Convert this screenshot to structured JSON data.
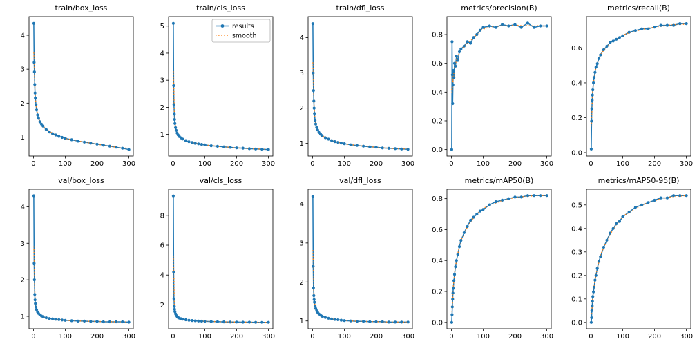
{
  "figure": {
    "background": "#ffffff",
    "accent_blue": "#1f77b4",
    "accent_orange": "#ff7f0e"
  },
  "legend": {
    "entries": [
      {
        "label": "results",
        "color": "#1f77b4",
        "style": "line-marker"
      },
      {
        "label": "smooth",
        "color": "#ff7f0e",
        "style": "dotted"
      }
    ]
  },
  "chart_data": [
    {
      "type": "line",
      "title": "train/box_loss",
      "series_name": "results",
      "x": [
        1,
        2,
        3,
        4,
        5,
        6,
        8,
        10,
        13,
        16,
        20,
        25,
        30,
        40,
        50,
        60,
        70,
        80,
        90,
        100,
        120,
        140,
        160,
        180,
        200,
        220,
        240,
        260,
        280,
        300
      ],
      "values": [
        4.35,
        3.2,
        2.92,
        2.55,
        2.3,
        2.15,
        1.95,
        1.8,
        1.65,
        1.55,
        1.45,
        1.38,
        1.32,
        1.22,
        1.15,
        1.1,
        1.06,
        1.02,
        0.99,
        0.96,
        0.92,
        0.88,
        0.85,
        0.82,
        0.79,
        0.76,
        0.73,
        0.7,
        0.67,
        0.63
      ],
      "xlim": [
        -14,
        314
      ],
      "ylim": [
        0.44,
        4.55
      ],
      "xticks": [
        0,
        100,
        200,
        300
      ],
      "xtick_labels": [
        "0",
        "100",
        "200",
        "300"
      ],
      "yticks": [
        1,
        2,
        3,
        4
      ],
      "ytick_labels": [
        "1",
        "2",
        "3",
        "4"
      ],
      "has_legend": false
    },
    {
      "type": "line",
      "title": "train/cls_loss",
      "series_name": "results",
      "x": [
        1,
        2,
        3,
        4,
        5,
        6,
        8,
        10,
        13,
        16,
        20,
        25,
        30,
        40,
        50,
        60,
        70,
        80,
        90,
        100,
        120,
        140,
        160,
        180,
        200,
        220,
        240,
        260,
        280,
        300
      ],
      "values": [
        5.1,
        2.8,
        2.1,
        1.75,
        1.55,
        1.4,
        1.25,
        1.15,
        1.05,
        0.98,
        0.92,
        0.87,
        0.83,
        0.77,
        0.73,
        0.7,
        0.67,
        0.65,
        0.63,
        0.61,
        0.58,
        0.56,
        0.54,
        0.52,
        0.5,
        0.49,
        0.47,
        0.46,
        0.45,
        0.44
      ],
      "xlim": [
        -14,
        314
      ],
      "ylim": [
        0.2,
        5.35
      ],
      "xticks": [
        0,
        100,
        200,
        300
      ],
      "xtick_labels": [
        "0",
        "100",
        "200",
        "300"
      ],
      "yticks": [
        1,
        2,
        3,
        4,
        5
      ],
      "ytick_labels": [
        "1",
        "2",
        "3",
        "4",
        "5"
      ],
      "has_legend": true
    },
    {
      "type": "line",
      "title": "train/dfl_loss",
      "series_name": "results",
      "x": [
        1,
        2,
        3,
        4,
        5,
        6,
        8,
        10,
        13,
        16,
        20,
        25,
        30,
        40,
        50,
        60,
        70,
        80,
        90,
        100,
        120,
        140,
        160,
        180,
        200,
        220,
        240,
        260,
        280,
        300
      ],
      "values": [
        4.4,
        3.0,
        2.5,
        2.2,
        2.0,
        1.85,
        1.65,
        1.55,
        1.45,
        1.38,
        1.31,
        1.26,
        1.22,
        1.16,
        1.12,
        1.08,
        1.05,
        1.03,
        1.01,
        0.99,
        0.96,
        0.94,
        0.92,
        0.9,
        0.89,
        0.87,
        0.86,
        0.85,
        0.84,
        0.83
      ],
      "xlim": [
        -14,
        314
      ],
      "ylim": [
        0.64,
        4.6
      ],
      "xticks": [
        0,
        100,
        200,
        300
      ],
      "xtick_labels": [
        "0",
        "100",
        "200",
        "300"
      ],
      "yticks": [
        1,
        2,
        3,
        4
      ],
      "ytick_labels": [
        "1",
        "2",
        "3",
        "4"
      ],
      "has_legend": false
    },
    {
      "type": "line",
      "title": "metrics/precision(B)",
      "series_name": "results",
      "x": [
        1,
        2,
        3,
        4,
        5,
        6,
        8,
        10,
        13,
        16,
        20,
        25,
        30,
        40,
        50,
        60,
        70,
        80,
        90,
        100,
        120,
        140,
        160,
        180,
        200,
        220,
        240,
        260,
        280,
        300
      ],
      "values": [
        0.0,
        0.75,
        0.52,
        0.32,
        0.45,
        0.55,
        0.5,
        0.6,
        0.58,
        0.65,
        0.62,
        0.68,
        0.7,
        0.72,
        0.75,
        0.74,
        0.78,
        0.8,
        0.83,
        0.85,
        0.86,
        0.85,
        0.87,
        0.86,
        0.87,
        0.85,
        0.88,
        0.85,
        0.86,
        0.86
      ],
      "xlim": [
        -14,
        314
      ],
      "ylim": [
        -0.045,
        0.925
      ],
      "xticks": [
        0,
        100,
        200,
        300
      ],
      "xtick_labels": [
        "0",
        "100",
        "200",
        "300"
      ],
      "yticks": [
        0.0,
        0.2,
        0.4,
        0.6,
        0.8
      ],
      "ytick_labels": [
        "0.0",
        "0.2",
        "0.4",
        "0.6",
        "0.8"
      ],
      "has_legend": false
    },
    {
      "type": "line",
      "title": "metrics/recall(B)",
      "series_name": "results",
      "x": [
        1,
        2,
        3,
        4,
        5,
        6,
        8,
        10,
        13,
        16,
        20,
        25,
        30,
        40,
        50,
        60,
        70,
        80,
        90,
        100,
        120,
        140,
        160,
        180,
        200,
        220,
        240,
        260,
        280,
        300
      ],
      "values": [
        0.02,
        0.18,
        0.25,
        0.3,
        0.33,
        0.36,
        0.4,
        0.43,
        0.46,
        0.49,
        0.51,
        0.54,
        0.56,
        0.59,
        0.61,
        0.63,
        0.64,
        0.65,
        0.66,
        0.67,
        0.69,
        0.7,
        0.71,
        0.71,
        0.72,
        0.73,
        0.73,
        0.73,
        0.74,
        0.74
      ],
      "xlim": [
        -14,
        314
      ],
      "ylim": [
        -0.02,
        0.78
      ],
      "xticks": [
        0,
        100,
        200,
        300
      ],
      "xtick_labels": [
        "0",
        "100",
        "200",
        "300"
      ],
      "yticks": [
        0.0,
        0.2,
        0.4,
        0.6
      ],
      "ytick_labels": [
        "0.0",
        "0.2",
        "0.4",
        "0.6"
      ],
      "has_legend": false
    },
    {
      "type": "line",
      "title": "val/box_loss",
      "series_name": "results",
      "x": [
        1,
        2,
        3,
        4,
        5,
        6,
        8,
        10,
        13,
        16,
        20,
        25,
        30,
        40,
        50,
        60,
        70,
        80,
        90,
        100,
        120,
        140,
        160,
        180,
        200,
        220,
        240,
        260,
        280,
        300
      ],
      "values": [
        4.3,
        2.45,
        2.0,
        1.6,
        1.45,
        1.35,
        1.25,
        1.18,
        1.12,
        1.08,
        1.04,
        1.01,
        0.99,
        0.96,
        0.94,
        0.93,
        0.92,
        0.91,
        0.9,
        0.89,
        0.88,
        0.87,
        0.87,
        0.86,
        0.86,
        0.85,
        0.85,
        0.85,
        0.85,
        0.84
      ],
      "xlim": [
        -14,
        314
      ],
      "ylim": [
        0.66,
        4.48
      ],
      "xticks": [
        0,
        100,
        200,
        300
      ],
      "xtick_labels": [
        "0",
        "100",
        "200",
        "300"
      ],
      "yticks": [
        1,
        2,
        3,
        4
      ],
      "ytick_labels": [
        "1",
        "2",
        "3",
        "4"
      ],
      "has_legend": false
    },
    {
      "type": "line",
      "title": "val/cls_loss",
      "series_name": "results",
      "x": [
        1,
        2,
        3,
        4,
        5,
        6,
        8,
        10,
        13,
        16,
        20,
        25,
        30,
        40,
        50,
        60,
        70,
        80,
        90,
        100,
        120,
        140,
        160,
        180,
        200,
        220,
        240,
        260,
        280,
        300
      ],
      "values": [
        9.3,
        4.2,
        2.4,
        1.9,
        1.7,
        1.55,
        1.4,
        1.3,
        1.22,
        1.16,
        1.11,
        1.07,
        1.04,
        1.0,
        0.97,
        0.95,
        0.93,
        0.92,
        0.91,
        0.9,
        0.88,
        0.87,
        0.86,
        0.85,
        0.85,
        0.84,
        0.84,
        0.83,
        0.83,
        0.83
      ],
      "xlim": [
        -14,
        314
      ],
      "ylim": [
        0.4,
        9.75
      ],
      "xticks": [
        0,
        100,
        200,
        300
      ],
      "xtick_labels": [
        "0",
        "100",
        "200",
        "300"
      ],
      "yticks": [
        2,
        4,
        6,
        8
      ],
      "ytick_labels": [
        "2",
        "4",
        "6",
        "8"
      ],
      "has_legend": false
    },
    {
      "type": "line",
      "title": "val/dfl_loss",
      "series_name": "results",
      "x": [
        1,
        2,
        3,
        4,
        5,
        6,
        8,
        10,
        13,
        16,
        20,
        25,
        30,
        40,
        50,
        60,
        70,
        80,
        90,
        100,
        120,
        140,
        160,
        180,
        200,
        220,
        240,
        260,
        280,
        300
      ],
      "values": [
        4.2,
        2.4,
        1.85,
        1.65,
        1.55,
        1.48,
        1.38,
        1.32,
        1.26,
        1.22,
        1.18,
        1.15,
        1.12,
        1.09,
        1.07,
        1.05,
        1.04,
        1.03,
        1.02,
        1.01,
        1.0,
        0.99,
        0.99,
        0.98,
        0.98,
        0.98,
        0.97,
        0.97,
        0.97,
        0.97
      ],
      "xlim": [
        -14,
        314
      ],
      "ylim": [
        0.8,
        4.38
      ],
      "xticks": [
        0,
        100,
        200,
        300
      ],
      "xtick_labels": [
        "0",
        "100",
        "200",
        "300"
      ],
      "yticks": [
        1,
        2,
        3,
        4
      ],
      "ytick_labels": [
        "1",
        "2",
        "3",
        "4"
      ],
      "has_legend": false
    },
    {
      "type": "line",
      "title": "metrics/mAP50(B)",
      "series_name": "results",
      "x": [
        1,
        2,
        3,
        4,
        5,
        6,
        8,
        10,
        13,
        16,
        20,
        25,
        30,
        40,
        50,
        60,
        70,
        80,
        90,
        100,
        120,
        140,
        160,
        180,
        200,
        220,
        240,
        260,
        280,
        300
      ],
      "values": [
        0.0,
        0.05,
        0.1,
        0.15,
        0.19,
        0.22,
        0.27,
        0.31,
        0.36,
        0.4,
        0.44,
        0.49,
        0.53,
        0.58,
        0.62,
        0.66,
        0.68,
        0.7,
        0.72,
        0.73,
        0.76,
        0.78,
        0.79,
        0.8,
        0.81,
        0.81,
        0.82,
        0.82,
        0.82,
        0.82
      ],
      "xlim": [
        -14,
        314
      ],
      "ylim": [
        -0.041,
        0.861
      ],
      "xticks": [
        0,
        100,
        200,
        300
      ],
      "xtick_labels": [
        "0",
        "100",
        "200",
        "300"
      ],
      "yticks": [
        0.0,
        0.2,
        0.4,
        0.6,
        0.8
      ],
      "ytick_labels": [
        "0.0",
        "0.2",
        "0.4",
        "0.6",
        "0.8"
      ],
      "has_legend": false
    },
    {
      "type": "line",
      "title": "metrics/mAP50-95(B)",
      "series_name": "results",
      "x": [
        1,
        2,
        3,
        4,
        5,
        6,
        8,
        10,
        13,
        16,
        20,
        25,
        30,
        40,
        50,
        60,
        70,
        80,
        90,
        100,
        120,
        140,
        160,
        180,
        200,
        220,
        240,
        260,
        280,
        300
      ],
      "values": [
        0.0,
        0.02,
        0.05,
        0.07,
        0.09,
        0.11,
        0.13,
        0.15,
        0.18,
        0.2,
        0.23,
        0.26,
        0.28,
        0.32,
        0.35,
        0.38,
        0.4,
        0.42,
        0.43,
        0.45,
        0.47,
        0.49,
        0.5,
        0.51,
        0.52,
        0.53,
        0.53,
        0.54,
        0.54,
        0.54
      ],
      "xlim": [
        -14,
        314
      ],
      "ylim": [
        -0.027,
        0.567
      ],
      "xticks": [
        0,
        100,
        200,
        300
      ],
      "xtick_labels": [
        "0",
        "100",
        "200",
        "300"
      ],
      "yticks": [
        0.0,
        0.1,
        0.2,
        0.3,
        0.4,
        0.5
      ],
      "ytick_labels": [
        "0.0",
        "0.1",
        "0.2",
        "0.3",
        "0.4",
        "0.5"
      ],
      "has_legend": false
    }
  ]
}
